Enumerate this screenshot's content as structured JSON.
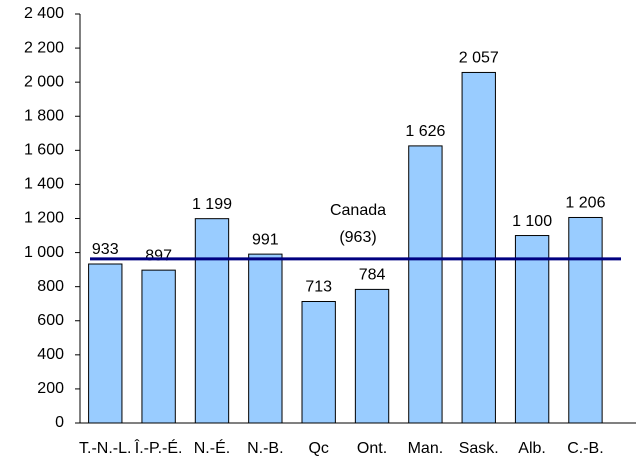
{
  "chart_data": {
    "type": "bar",
    "categories": [
      "T.-N.-L.",
      "Î.-P.-É.",
      "N.-É.",
      "N.-B.",
      "Qc",
      "Ont.",
      "Man.",
      "Sask.",
      "Alb.",
      "C.-B."
    ],
    "values": [
      933,
      897,
      1199,
      991,
      713,
      784,
      1626,
      2057,
      1100,
      1206
    ],
    "value_labels": [
      "933",
      "897",
      "1 199",
      "991",
      "713",
      "784",
      "1 626",
      "2 057",
      "1 100",
      "1 206"
    ],
    "color": "#99ccff",
    "reference_line": {
      "value": 963,
      "label": "Canada",
      "value_label": "(963)",
      "color": "#000080"
    },
    "ylim": [
      0,
      2400
    ],
    "yticks": [
      0,
      200,
      400,
      600,
      800,
      {
        "value": 1000,
        "label": "1 000"
      },
      {
        "value": 1200,
        "label": "1 200"
      },
      {
        "value": 1400,
        "label": "1 400"
      },
      {
        "value": 1600,
        "label": "1 600"
      },
      {
        "value": 1800,
        "label": "1 800"
      },
      {
        "value": 2000,
        "label": "2 000"
      },
      {
        "value": 2200,
        "label": "2 200"
      },
      {
        "value": 2400,
        "label": "2 400"
      }
    ],
    "grid": false
  }
}
